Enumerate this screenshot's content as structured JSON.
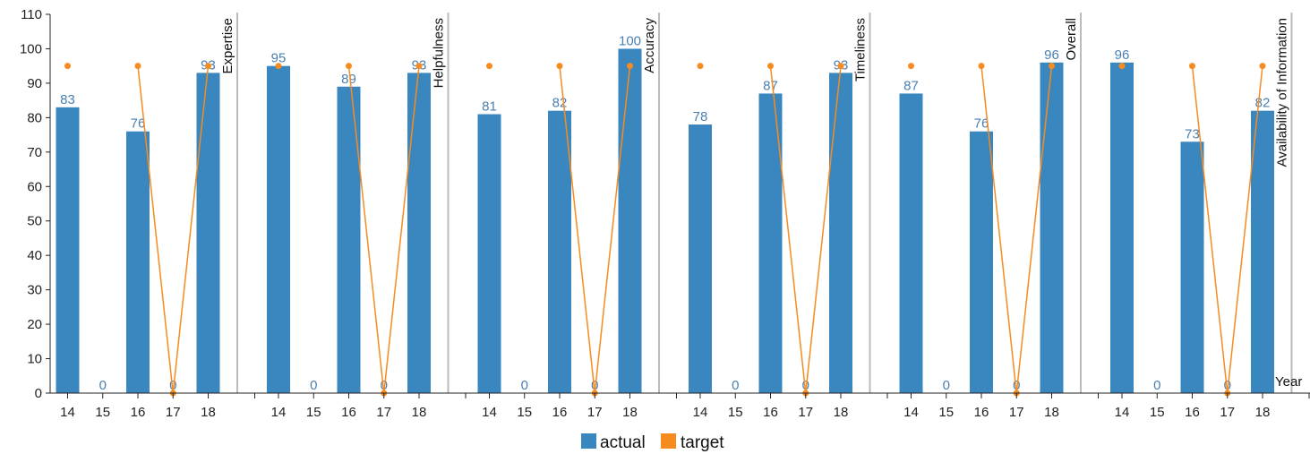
{
  "chart_data": {
    "type": "bar",
    "x_axis_label": "Year",
    "ylim": [
      0,
      110
    ],
    "y_ticks": [
      0,
      10,
      20,
      30,
      40,
      50,
      60,
      70,
      80,
      90,
      100,
      110
    ],
    "categories": [
      "14",
      "15",
      "16",
      "17",
      "18"
    ],
    "legend": {
      "placement": "bottom",
      "items": [
        {
          "name": "actual",
          "color": "#3a87c0"
        },
        {
          "name": "target",
          "color": "#f68b1f"
        }
      ]
    },
    "panels": [
      {
        "title": "Expertise",
        "actual": [
          83,
          0,
          76,
          0,
          93
        ],
        "target": [
          95,
          null,
          95,
          0,
          95
        ]
      },
      {
        "title": "Helpfulness",
        "actual": [
          95,
          0,
          89,
          0,
          93
        ],
        "target": [
          95,
          null,
          95,
          0,
          95
        ]
      },
      {
        "title": "Accuracy",
        "actual": [
          81,
          0,
          82,
          0,
          100
        ],
        "target": [
          95,
          null,
          95,
          0,
          95
        ]
      },
      {
        "title": "Timeliness",
        "actual": [
          78,
          0,
          87,
          0,
          93
        ],
        "target": [
          95,
          null,
          95,
          0,
          95
        ]
      },
      {
        "title": "Overall",
        "actual": [
          87,
          0,
          76,
          0,
          96
        ],
        "target": [
          95,
          null,
          95,
          0,
          95
        ]
      },
      {
        "title": "Availability of Information",
        "actual": [
          96,
          0,
          73,
          0,
          82
        ],
        "target": [
          95,
          null,
          95,
          0,
          95
        ]
      }
    ],
    "grid": false,
    "colors": {
      "actual": "#3a87c0",
      "target": "#f68b1f",
      "divider": "#bbbbbb",
      "axis": "#222222",
      "bar_label": "#4a7fb0"
    }
  }
}
